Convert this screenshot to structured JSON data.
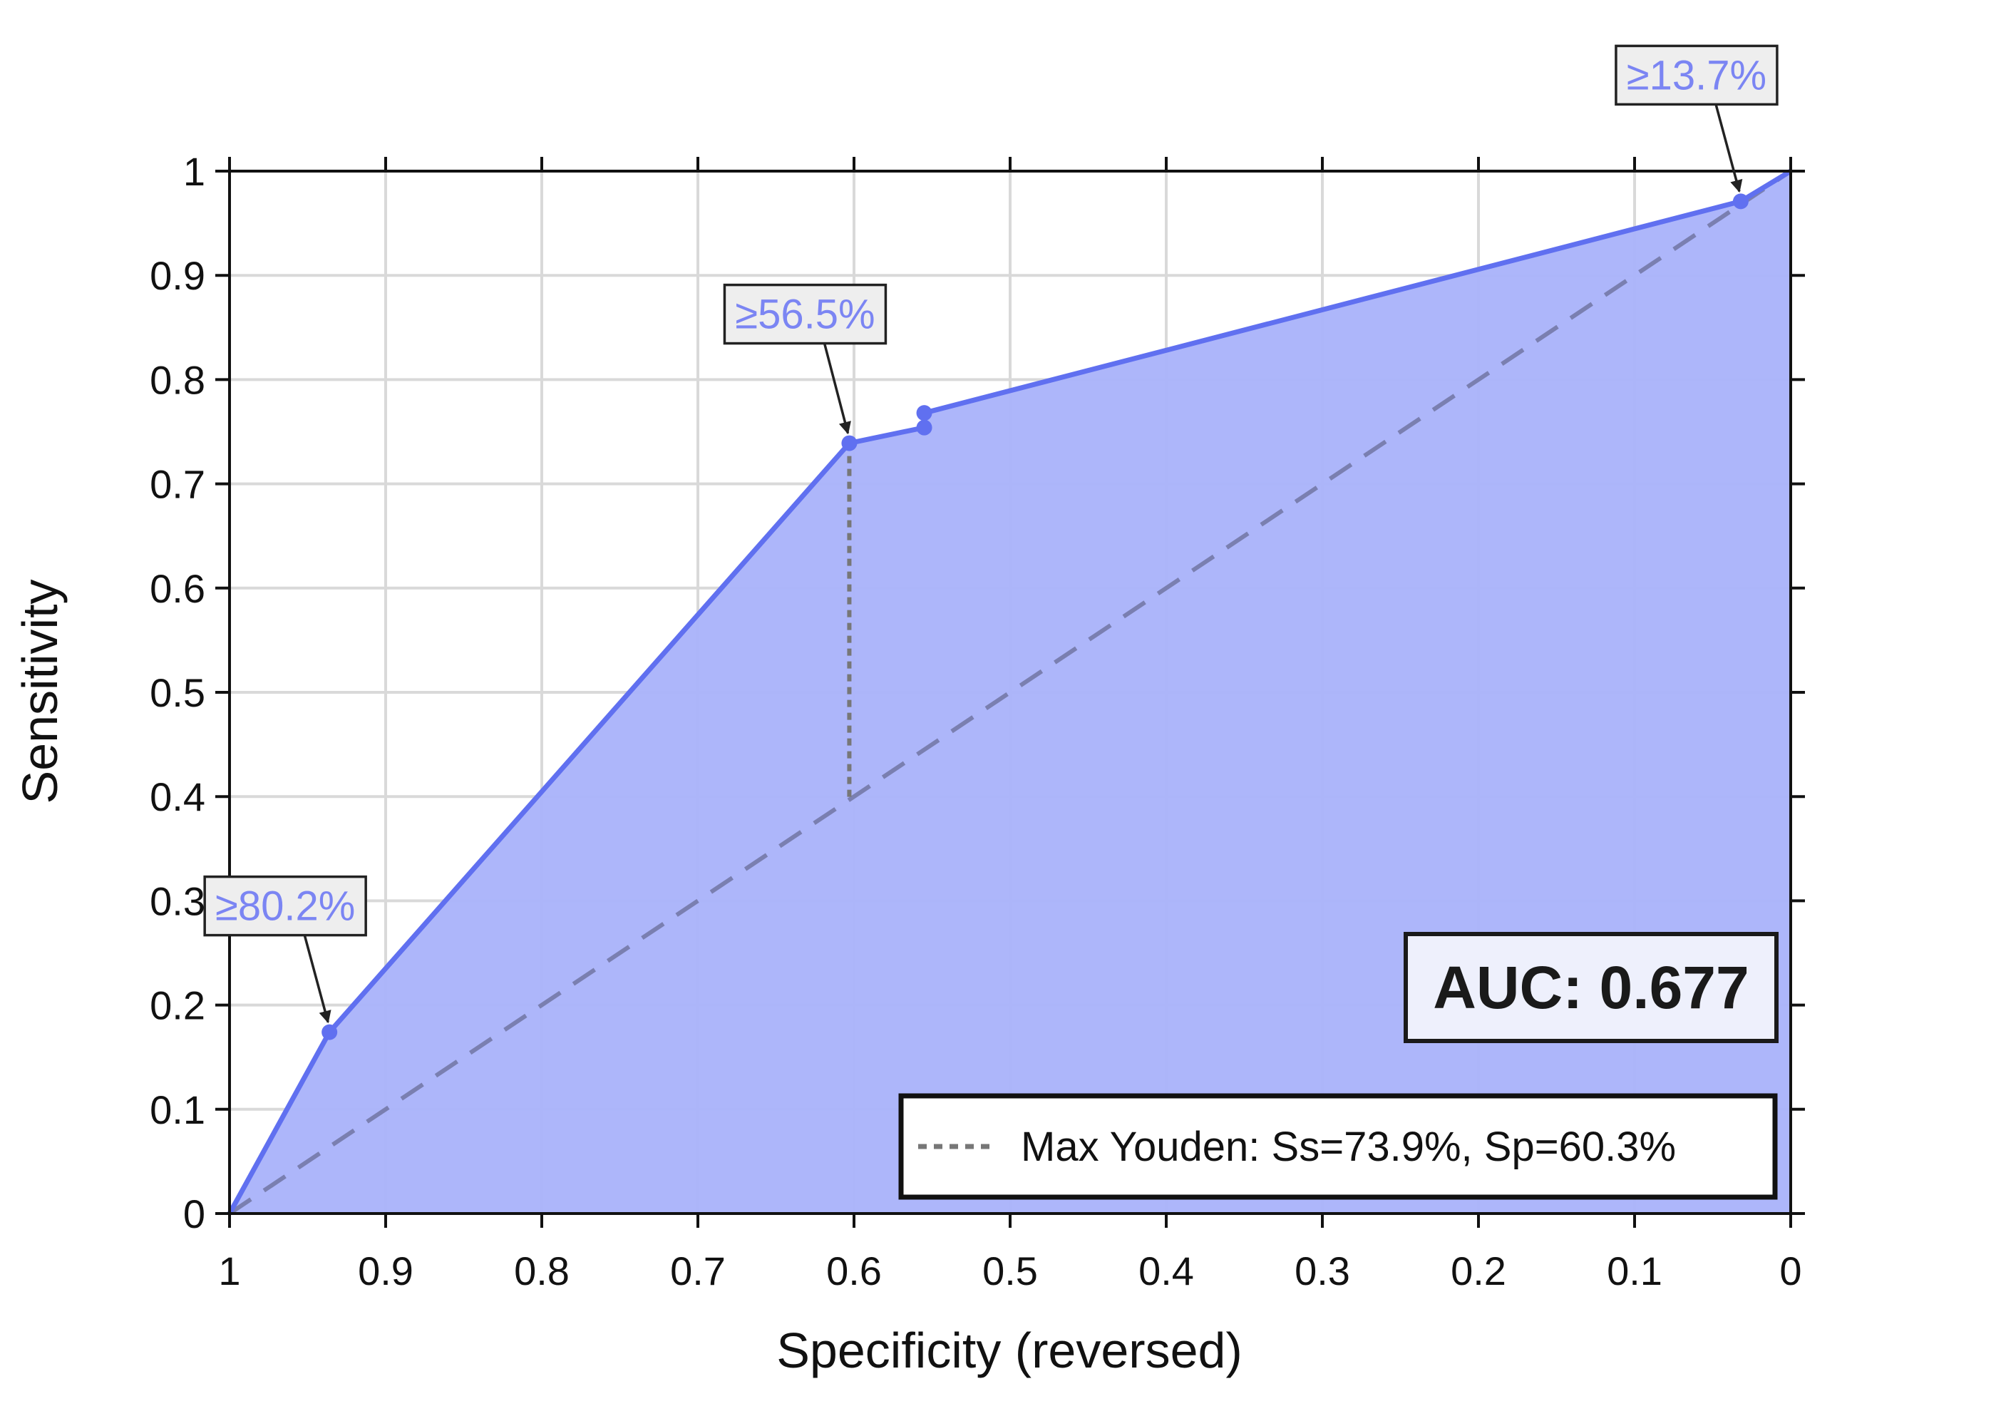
{
  "colors": {
    "curve": "#6070f0",
    "fill": "#aab3fa",
    "label_text": "#7b85f3",
    "label_box": "#eeeeee",
    "diagonal": "#7a7fb0",
    "youden": "#777777",
    "grid": "#d9d9d9"
  },
  "chart_data": {
    "type": "line",
    "title": "",
    "xlabel": "Specificity (reversed)",
    "ylabel": "Sensitivity",
    "xlim": [
      1,
      0
    ],
    "ylim": [
      0,
      1
    ],
    "x_reversed": true,
    "grid": true,
    "x_ticks": [
      "1",
      "0.9",
      "0.8",
      "0.7",
      "0.6",
      "0.5",
      "0.4",
      "0.3",
      "0.2",
      "0.1",
      "0"
    ],
    "y_ticks": [
      "0",
      "0.1",
      "0.2",
      "0.3",
      "0.4",
      "0.5",
      "0.6",
      "0.7",
      "0.8",
      "0.9",
      "1"
    ],
    "series": [
      {
        "specificity": [
          1.0,
          0.936,
          0.603,
          0.555,
          0.555,
          0.032,
          0.0
        ],
        "sensitivity": [
          0.0,
          0.174,
          0.739,
          0.754,
          0.768,
          0.971,
          1.0
        ],
        "markers": [
          {
            "specificity": 0.936,
            "sensitivity": 0.174
          },
          {
            "specificity": 0.603,
            "sensitivity": 0.739
          },
          {
            "specificity": 0.555,
            "sensitivity": 0.754
          },
          {
            "specificity": 0.555,
            "sensitivity": 0.768
          },
          {
            "specificity": 0.032,
            "sensitivity": 0.971
          }
        ]
      }
    ],
    "reference_line": {
      "from": [
        1,
        0
      ],
      "to": [
        0,
        1
      ],
      "style": "dashed"
    },
    "annotations": [
      {
        "text": "≥80.2%",
        "specificity": 0.936,
        "sensitivity": 0.174
      },
      {
        "text": "≥56.5%",
        "specificity": 0.603,
        "sensitivity": 0.739
      },
      {
        "text": "≥13.7%",
        "specificity": 0.032,
        "sensitivity": 0.971
      }
    ],
    "youden": {
      "specificity": 0.603,
      "sensitivity": 0.739,
      "reference_sensitivity": 0.397
    },
    "auc_label": "AUC: 0.677",
    "legend": {
      "position": "bottom-right",
      "entries": [
        "Max Youden: Ss=73.9%, Sp=60.3%"
      ]
    }
  }
}
